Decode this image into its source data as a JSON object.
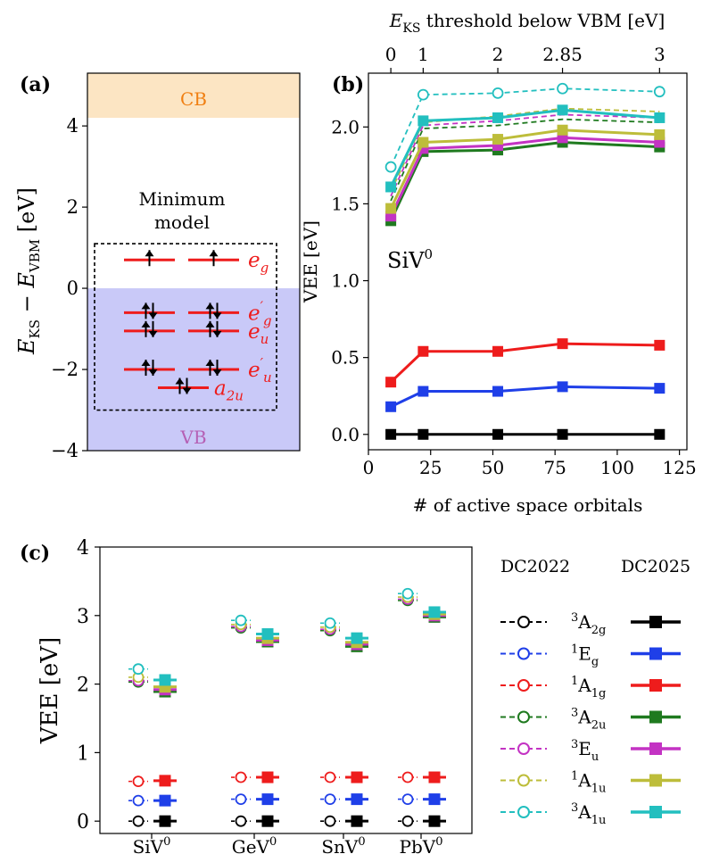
{
  "chart_data": [
    {
      "id": "a",
      "type": "diagram",
      "panel_label": "(a)",
      "ylabel": "E_KS - E_VBM [eV]",
      "ylim": [
        -4,
        5.3
      ],
      "yticks": [
        4,
        2,
        0,
        -2,
        -4
      ],
      "ytick_labels": [
        "4",
        "2",
        "0",
        "−2",
        "−4"
      ],
      "bands": {
        "cb": {
          "label": "CB",
          "from": 4.2,
          "to": 5.3,
          "color": "#fce5c3",
          "label_color": "#f07f12"
        },
        "vb": {
          "label": "VB",
          "from": -4,
          "to": 0,
          "color": "#c9c9f8",
          "label_color": "#b560b5"
        }
      },
      "box_label_line1": "Minimum",
      "box_label_line2": "model",
      "box_range": [
        -3.0,
        1.1
      ],
      "levels": [
        {
          "name": "e_g",
          "base": "e",
          "sub": "g",
          "prime": false,
          "energy": 0.7,
          "spins": "up",
          "pair": true
        },
        {
          "name": "e'_g",
          "base": "e",
          "sub": "g",
          "prime": true,
          "energy": -0.6,
          "spins": "updown",
          "pair": true
        },
        {
          "name": "e_u",
          "base": "e",
          "sub": "u",
          "prime": false,
          "energy": -1.05,
          "spins": "updown",
          "pair": true
        },
        {
          "name": "e'_u",
          "base": "e",
          "sub": "u",
          "prime": true,
          "energy": -2.0,
          "spins": "updown",
          "pair": true
        },
        {
          "name": "a_2u",
          "base": "a",
          "sub": "2u",
          "prime": false,
          "energy": -2.45,
          "spins": "updown",
          "pair": false
        }
      ],
      "level_color": "#ee1c1c"
    },
    {
      "id": "b",
      "type": "line",
      "panel_label": "(b)",
      "annotation": "SiV⁰",
      "xlabel": "# of active space orbitals",
      "ylabel": "VEE [eV]",
      "xlim": [
        0,
        128
      ],
      "ylim": [
        -0.1,
        2.35
      ],
      "xticks": [
        0,
        25,
        50,
        75,
        100,
        125
      ],
      "yticks": [
        0.0,
        0.5,
        1.0,
        1.5,
        2.0
      ],
      "ytick_labels": [
        "0.0",
        "0.5",
        "1.0",
        "1.5",
        "2.0"
      ],
      "top_axis": {
        "label": "E_KS threshold below VBM [eV]",
        "ticks": [
          {
            "x": 9,
            "label": "0"
          },
          {
            "x": 22,
            "label": "1"
          },
          {
            "x": 52,
            "label": "2"
          },
          {
            "x": 78,
            "label": "2.85"
          },
          {
            "x": 117,
            "label": "3"
          }
        ]
      },
      "x": [
        9,
        22,
        52,
        78,
        117
      ],
      "series": [
        {
          "name": "3A2g",
          "color": "#000000",
          "style": "solid",
          "marker": "filled-square",
          "values": [
            0.0,
            0.0,
            0.0,
            0.0,
            0.0
          ]
        },
        {
          "name": "1Eg",
          "color": "#1f3fe8",
          "style": "solid",
          "marker": "filled-square",
          "values": [
            0.18,
            0.28,
            0.28,
            0.31,
            0.3
          ]
        },
        {
          "name": "1A1g",
          "color": "#ee1c1c",
          "style": "solid",
          "marker": "filled-square",
          "values": [
            0.34,
            0.54,
            0.54,
            0.59,
            0.58
          ]
        },
        {
          "name": "3A2u",
          "color": "#1f7a1f",
          "style": "solid",
          "marker": "filled-square",
          "values": [
            1.39,
            1.84,
            1.85,
            1.9,
            1.87
          ]
        },
        {
          "name": "3Eu",
          "color": "#c333c3",
          "style": "solid",
          "marker": "filled-square",
          "values": [
            1.42,
            1.86,
            1.88,
            1.93,
            1.9
          ]
        },
        {
          "name": "1A1u",
          "color": "#bdbd3a",
          "style": "solid",
          "marker": "filled-square",
          "values": [
            1.47,
            1.9,
            1.92,
            1.98,
            1.95
          ]
        },
        {
          "name": "3A1u",
          "color": "#22bfbf",
          "style": "solid",
          "marker": "filled-square",
          "values": [
            1.61,
            2.04,
            2.06,
            2.11,
            2.06
          ]
        },
        {
          "name": "3A2u-dash",
          "color": "#1f7a1f",
          "style": "dashed",
          "marker": "none",
          "values": [
            1.52,
            1.99,
            2.01,
            2.05,
            2.03
          ]
        },
        {
          "name": "3Eu-dash",
          "color": "#c333c3",
          "style": "dashed",
          "marker": "none",
          "values": [
            1.55,
            2.01,
            2.04,
            2.08,
            2.06
          ]
        },
        {
          "name": "1A1u-dash",
          "color": "#bdbd3a",
          "style": "dashed",
          "marker": "none",
          "values": [
            1.58,
            2.03,
            2.07,
            2.12,
            2.1
          ]
        },
        {
          "name": "3A1u-dash",
          "color": "#22bfbf",
          "style": "dashed",
          "marker": "open-circle",
          "values": [
            1.74,
            2.21,
            2.22,
            2.25,
            2.23
          ]
        }
      ]
    },
    {
      "id": "c",
      "type": "scatter",
      "panel_label": "(c)",
      "ylabel": "VEE [eV]",
      "ylim": [
        -0.18,
        4
      ],
      "yticks": [
        0,
        1,
        2,
        3,
        4
      ],
      "categories": [
        "SiV⁰",
        "GeV⁰",
        "SnV⁰",
        "PbV⁰"
      ],
      "legend_titles": [
        "DC2022",
        "DC2025"
      ],
      "legend_position": "right",
      "states": [
        {
          "name": "3A2g",
          "sup": "3",
          "base": "A",
          "sub": "2g",
          "color": "#000000"
        },
        {
          "name": "1Eg",
          "sup": "1",
          "base": "E",
          "sub": "g",
          "color": "#1f3fe8"
        },
        {
          "name": "1A1g",
          "sup": "1",
          "base": "A",
          "sub": "1g",
          "color": "#ee1c1c"
        },
        {
          "name": "3A2u",
          "sup": "3",
          "base": "A",
          "sub": "2u",
          "color": "#1f7a1f"
        },
        {
          "name": "3Eu",
          "sup": "3",
          "base": "E",
          "sub": "u",
          "color": "#c333c3"
        },
        {
          "name": "1A1u",
          "sup": "1",
          "base": "A",
          "sub": "1u",
          "color": "#bdbd3a"
        },
        {
          "name": "3A1u",
          "sup": "3",
          "base": "A",
          "sub": "1u",
          "color": "#22bfbf"
        }
      ],
      "dc2022": [
        [
          0.0,
          0.3,
          0.58,
          2.03,
          2.05,
          2.1,
          2.22
        ],
        [
          0.0,
          0.32,
          0.64,
          2.82,
          2.84,
          2.87,
          2.93
        ],
        [
          0.0,
          0.32,
          0.64,
          2.78,
          2.8,
          2.83,
          2.89
        ],
        [
          0.0,
          0.32,
          0.64,
          3.22,
          3.24,
          3.27,
          3.32
        ]
      ],
      "dc2025": [
        [
          0.0,
          0.3,
          0.59,
          1.89,
          1.92,
          1.96,
          2.06
        ],
        [
          0.0,
          0.32,
          0.64,
          2.62,
          2.64,
          2.67,
          2.73
        ],
        [
          0.0,
          0.32,
          0.64,
          2.55,
          2.58,
          2.61,
          2.67
        ],
        [
          0.0,
          0.32,
          0.64,
          2.98,
          3.0,
          3.02,
          3.05
        ]
      ]
    }
  ]
}
